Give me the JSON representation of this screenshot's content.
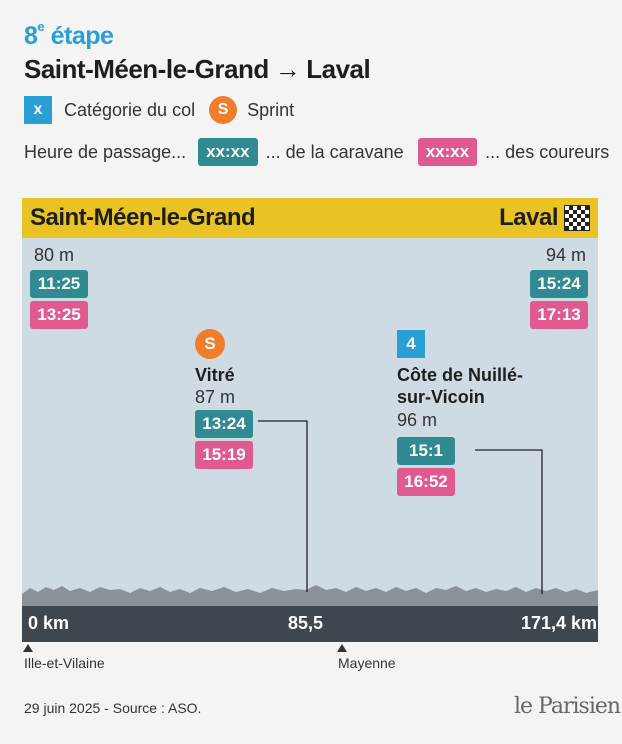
{
  "header": {
    "stage_number": "8",
    "stage_suffix": "e",
    "stage_word": "étape",
    "start": "Saint-Méen-le-Grand",
    "arrow": "→",
    "finish": "Laval"
  },
  "legend": {
    "category_symbol": "x",
    "category_label": "Catégorie du col",
    "sprint_symbol": "S",
    "sprint_label": "Sprint",
    "passage_label": "Heure de passage...",
    "caravan_time": "xx:xx",
    "caravan_label": "... de la caravane",
    "riders_time": "xx:xx",
    "riders_label": "... des coureurs"
  },
  "profile": {
    "start_name": "Saint-Méen-le-Grand",
    "finish_name": "Laval",
    "start_altitude": "80 m",
    "start_caravan": "11:25",
    "start_riders": "13:25",
    "finish_altitude": "94 m",
    "finish_caravan": "15:24",
    "finish_riders": "17:13",
    "sprint": {
      "symbol": "S",
      "name": "Vitré",
      "altitude": "87 m",
      "caravan": "13:24",
      "riders": "15:19",
      "km": "85,5"
    },
    "climb": {
      "category": "4",
      "name_line1": "Côte de Nuillé-",
      "name_line2": "sur-Vicoin",
      "altitude": "96 m",
      "caravan": "15:1",
      "riders": "16:52"
    },
    "km_start": "0 km",
    "km_end": "171,4 km",
    "regions": [
      "Ille-et-Vilaine",
      "Mayenne"
    ]
  },
  "colors": {
    "stage_blue": "#2a9fd6",
    "banner_yellow": "#e8c323",
    "panel_blue": "#cfdbe3",
    "caravan_teal": "#2f8a91",
    "riders_pink": "#e05a8f",
    "sprint_orange": "#f07d2a",
    "terrain_gray": "#8a9298",
    "axis_dark": "#3e474e"
  },
  "footer": {
    "source": "29 juin 2025 - Source : ASO.",
    "logo": "le Parisien"
  }
}
